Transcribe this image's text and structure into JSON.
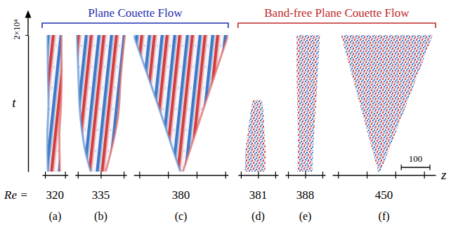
{
  "chart_data": {
    "type": "spacetime",
    "ylim": [
      0,
      20000
    ],
    "yticks": [
      {
        "value": 20000,
        "label": "2×10⁴"
      }
    ],
    "y_label": "t",
    "x_label": "z",
    "re_label": "Re =",
    "scale_bar": 100,
    "tick_labels": false,
    "groups": [
      {
        "title": "Plane Couette Flow",
        "color": "#1f2fb0",
        "panels": [
          {
            "label": "(a)",
            "Re": 320,
            "type": "bands",
            "zlim": [
              0,
              90
            ],
            "xticks": [
              10,
              80
            ],
            "t": [
              0,
              5000,
              10000,
              15000,
              20000
            ],
            "left": [
              20,
              18,
              22,
              20,
              19
            ],
            "right": [
              62,
              60,
              66,
              68,
              67
            ]
          },
          {
            "label": "(b)",
            "Re": 335,
            "type": "bands",
            "zlim": [
              0,
              180
            ],
            "xticks": [
              10,
              90,
              170
            ],
            "t": [
              0,
              3000,
              8000,
              14000,
              20000
            ],
            "left": [
              55,
              36,
              19,
              12,
              7
            ],
            "right": [
              107,
              126,
              150,
              160,
              174
            ]
          },
          {
            "label": "(c)",
            "Re": 380,
            "type": "bands",
            "zlim": [
              0,
              330
            ],
            "xticks": [
              20,
              120,
              220,
              320
            ],
            "t": [
              0,
              10000,
              20000
            ],
            "left": [
              163,
              83,
              0
            ],
            "right": [
              172,
              250,
              330
            ]
          }
        ]
      },
      {
        "title": "Band-free Plane Couette Flow",
        "color": "#c0282a",
        "panels": [
          {
            "label": "(d)",
            "Re": 381,
            "type": "featureless",
            "zlim": [
              0,
              140
            ],
            "xticks": [
              10,
              70,
              130
            ],
            "t": [
              0,
              3000,
              6000,
              9000,
              10500
            ],
            "left": [
              24,
              26,
              35,
              45,
              52
            ],
            "right": [
              95,
              96,
              92,
              88,
              83
            ]
          },
          {
            "label": "(e)",
            "Re": 388,
            "type": "featureless",
            "zlim": [
              0,
              140
            ],
            "xticks": [
              10,
              70,
              130
            ],
            "t": [
              0,
              5000,
              10000,
              15000,
              20000
            ],
            "left": [
              43,
              44,
              42,
              40,
              40
            ],
            "right": [
              95,
              100,
              108,
              115,
              121
            ]
          },
          {
            "label": "(f)",
            "Re": 450,
            "type": "featureless",
            "zlim": [
              0,
              360
            ],
            "xticks": [
              20,
              120,
              220,
              320
            ],
            "t": [
              0,
              10000,
              20000
            ],
            "left": [
              160,
              95,
              30
            ],
            "right": [
              168,
              260,
              350
            ]
          }
        ]
      }
    ]
  }
}
